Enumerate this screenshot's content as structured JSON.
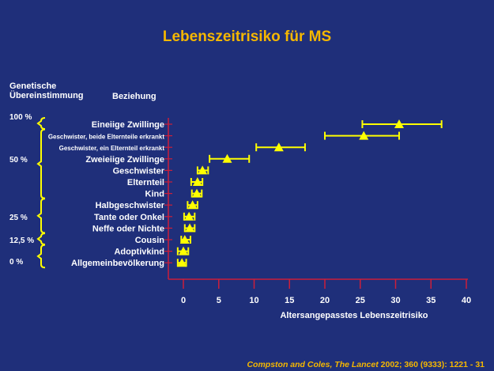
{
  "chart_data": {
    "type": "scatter",
    "title": "Lebenszeitrisiko für MS",
    "xlabel": "Altersangepasstes Lebenszeitrisiko",
    "ylabel": "Beziehung",
    "xlim": [
      0,
      40
    ],
    "xticks": [
      "0",
      "5",
      "10",
      "15",
      "20",
      "25",
      "30",
      "35",
      "40"
    ],
    "categories": [
      "Eineiige Zwillinge",
      "Geschwister, beide Elternteile erkrankt",
      "Geschwister, ein Elternteil erkrankt",
      "Zweieiige Zwillinge",
      "Geschwister",
      "Elternteil",
      "Kind",
      "Halbgeschwister",
      "Tante oder Onkel",
      "Neffe oder Nichte",
      "Cousin",
      "Adoptivkind",
      "Allgemeinbevölkerung"
    ],
    "values": [
      30.5,
      25.5,
      13.5,
      6.2,
      2.7,
      2.0,
      1.9,
      1.3,
      0.8,
      0.9,
      0.2,
      0.0,
      -0.2
    ],
    "ci_low": [
      25.3,
      20.0,
      10.3,
      3.7,
      2.0,
      1.1,
      1.2,
      0.6,
      0.1,
      0.2,
      -0.3,
      -0.8,
      -0.8
    ],
    "ci_high": [
      36.5,
      30.5,
      17.2,
      9.3,
      3.5,
      2.7,
      2.6,
      2.0,
      1.6,
      1.6,
      1.0,
      0.7,
      0.4
    ],
    "genetic_header": "Genetische Übereinstimmung",
    "relationship_header": "Beziehung",
    "genetic_levels": [
      "100 %",
      "50 %",
      "25 %",
      "12,5 %",
      "0 %"
    ],
    "colors": {
      "background": "#1f2f7a",
      "title": "#f5b700",
      "marker": "#ffff00",
      "axis": "#cc1f3a",
      "text": "#ffffff"
    }
  },
  "citation": {
    "authors": "Compston and Coles, The Lancet",
    "details": "2002; 360 (9333): 1221 - 31"
  }
}
